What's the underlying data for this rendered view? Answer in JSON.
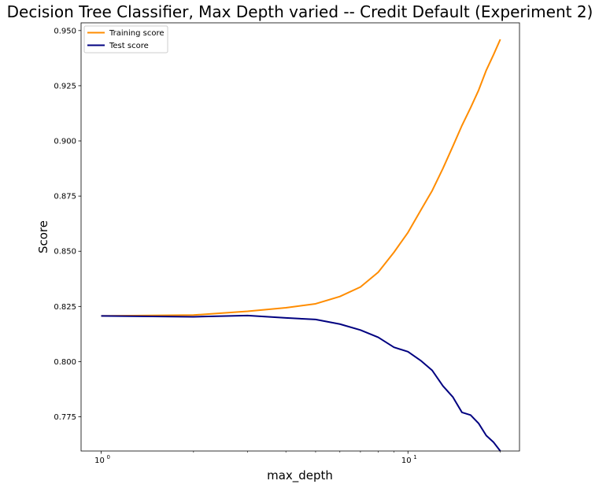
{
  "chart_data": {
    "type": "line",
    "title": "Decision Tree Classifier, Max Depth varied -- Credit Default (Experiment 2)",
    "xlabel": "max_depth",
    "ylabel": "Score",
    "xscale": "log",
    "xlim": [
      0.86,
      23.1
    ],
    "ylim": [
      0.7595,
      0.9535
    ],
    "x_ticks": [
      {
        "value": 1,
        "base": "10",
        "exp": "0"
      },
      {
        "value": 10,
        "base": "10",
        "exp": "1"
      }
    ],
    "y_ticks": [
      "0.775",
      "0.800",
      "0.825",
      "0.850",
      "0.875",
      "0.900",
      "0.925",
      "0.950"
    ],
    "grid": false,
    "legend_position": "top-left",
    "x": [
      1,
      2,
      3,
      4,
      5,
      6,
      7,
      8,
      9,
      10,
      11,
      12,
      13,
      14,
      15,
      16,
      17,
      18,
      19,
      20
    ],
    "series": [
      {
        "name": "Training score",
        "color": "#ff8c00",
        "values": [
          0.8207,
          0.8211,
          0.8228,
          0.8244,
          0.8262,
          0.8295,
          0.8338,
          0.8405,
          0.8495,
          0.8585,
          0.8685,
          0.8775,
          0.8875,
          0.8975,
          0.907,
          0.915,
          0.923,
          0.932,
          0.939,
          0.946
        ]
      },
      {
        "name": "Test score",
        "color": "#000080",
        "values": [
          0.8207,
          0.8203,
          0.8209,
          0.8198,
          0.8191,
          0.817,
          0.8143,
          0.811,
          0.8065,
          0.8045,
          0.8005,
          0.796,
          0.789,
          0.784,
          0.777,
          0.7758,
          0.772,
          0.7665,
          0.7635,
          0.7595
        ]
      }
    ]
  }
}
